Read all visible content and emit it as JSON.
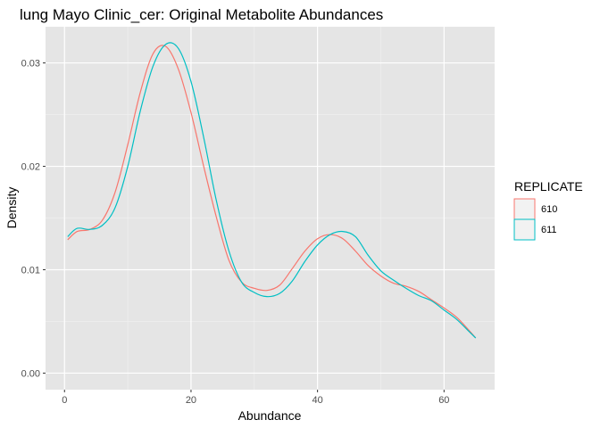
{
  "chart_data": {
    "type": "line",
    "subtype": "density",
    "title": "lung Mayo Clinic_cer: Original Metabolite Abundances",
    "xlabel": "Abundance",
    "ylabel": "Density",
    "xlim": [
      -3,
      68
    ],
    "ylim": [
      -0.0016,
      0.0335
    ],
    "x_ticks": [
      0,
      20,
      40,
      60
    ],
    "y_ticks": [
      0.0,
      0.01,
      0.02,
      0.03
    ],
    "x_tick_labels": [
      "0",
      "20",
      "40",
      "60"
    ],
    "y_tick_labels": [
      "0.00",
      "0.01",
      "0.02",
      "0.03"
    ],
    "grid": true,
    "panel_background": "#E5E5E5",
    "legend": {
      "title": "REPLICATE",
      "position": "right",
      "entries": [
        "610",
        "611"
      ]
    },
    "series": [
      {
        "name": "610",
        "color": "#F8766D",
        "x": [
          0.5,
          2,
          4,
          6,
          8,
          10,
          12,
          14,
          16,
          18,
          20,
          22,
          24,
          26,
          28,
          30,
          32,
          34,
          36,
          38,
          40,
          42,
          44,
          46,
          48,
          50,
          52,
          54,
          56,
          58,
          60,
          62,
          64,
          65
        ],
        "y": [
          0.0129,
          0.0137,
          0.0139,
          0.0148,
          0.0175,
          0.0221,
          0.0272,
          0.0309,
          0.0316,
          0.0294,
          0.0252,
          0.02,
          0.0151,
          0.0109,
          0.0088,
          0.0082,
          0.008,
          0.0085,
          0.0101,
          0.0118,
          0.013,
          0.0134,
          0.013,
          0.0118,
          0.0104,
          0.0094,
          0.0087,
          0.0084,
          0.0079,
          0.0071,
          0.0063,
          0.0054,
          0.0041,
          0.0034
        ]
      },
      {
        "name": "611",
        "color": "#00BFC4",
        "x": [
          0.5,
          2,
          4,
          6,
          8,
          10,
          12,
          14,
          16,
          18,
          20,
          22,
          24,
          26,
          28,
          30,
          32,
          34,
          36,
          38,
          40,
          42,
          44,
          46,
          48,
          50,
          52,
          54,
          56,
          58,
          60,
          62,
          64,
          65
        ],
        "y": [
          0.0132,
          0.014,
          0.0139,
          0.0143,
          0.016,
          0.02,
          0.0254,
          0.0297,
          0.0318,
          0.0314,
          0.0282,
          0.0228,
          0.0167,
          0.0118,
          0.0088,
          0.0078,
          0.0074,
          0.0077,
          0.0089,
          0.0108,
          0.0124,
          0.0134,
          0.0137,
          0.0132,
          0.0114,
          0.0099,
          0.009,
          0.0082,
          0.0075,
          0.007,
          0.0061,
          0.0052,
          0.004,
          0.0034
        ]
      }
    ]
  }
}
